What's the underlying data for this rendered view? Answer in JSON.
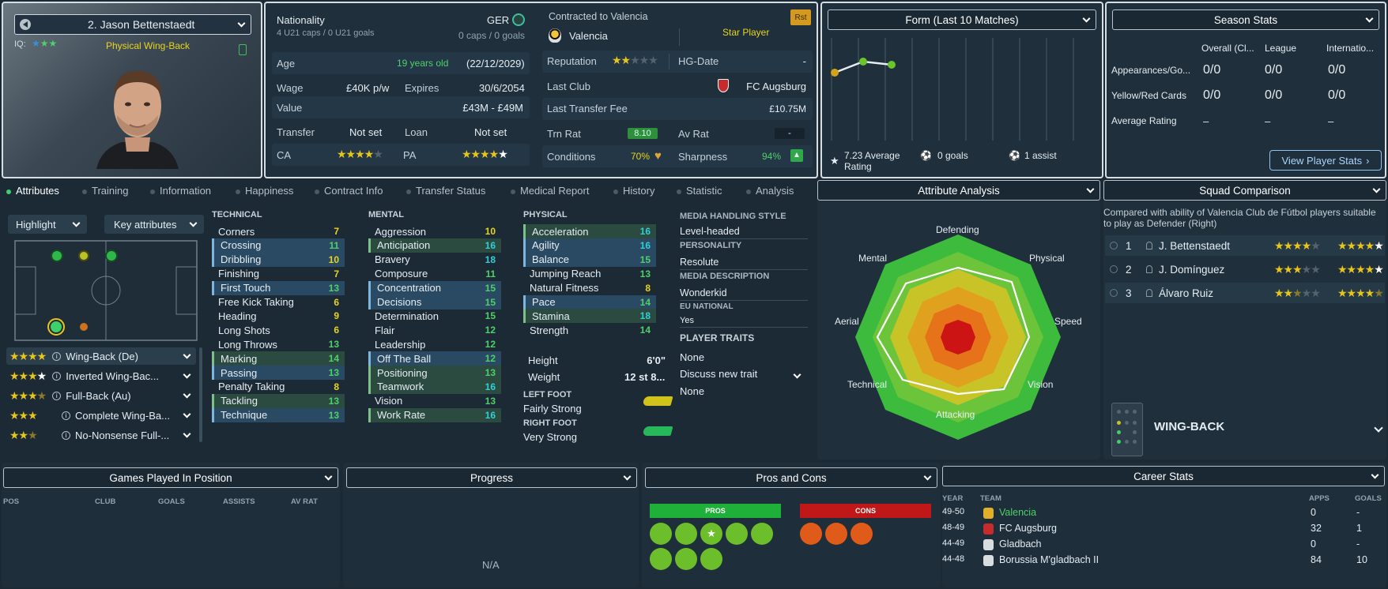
{
  "player": {
    "name": "2. Jason Bettenstaedt",
    "iq_label": "IQ:",
    "role_label": "Physical Wing-Back"
  },
  "profile": {
    "nationality_label": "Nationality",
    "nationality_code": "GER",
    "u21": "4 U21 caps / 0 U21 goals",
    "caps": "0 caps / 0 goals",
    "age_label": "Age",
    "age_value": "19 years old",
    "dob": "(22/12/2029)",
    "wage_label": "Wage",
    "wage": "£40K p/w",
    "expires_label": "Expires",
    "expires": "30/6/2054",
    "value_label": "Value",
    "value": "£43M - £49M",
    "transfer_label": "Transfer",
    "transfer": "Not set",
    "loan_label": "Loan",
    "loan": "Not set",
    "ca_label": "CA",
    "pa_label": "PA"
  },
  "contract": {
    "contracted": "Contracted to Valencia",
    "badge": "Rst",
    "club": "Valencia",
    "status": "Star Player",
    "reputation_label": "Reputation",
    "hg_label": "HG-Date",
    "hg": "-",
    "last_club_label": "Last Club",
    "last_club": "FC Augsburg",
    "fee_label": "Last Transfer Fee",
    "fee": "£10.75M",
    "trn_label": "Trn Rat",
    "trn": "8.10",
    "avrat_label": "Av Rat",
    "avrat": "-",
    "conditions_label": "Conditions",
    "conditions": "70%",
    "sharpness_label": "Sharpness",
    "sharpness": "94%"
  },
  "form": {
    "title": "Form (Last 10 Matches)",
    "avg": "7.23 Average Rating",
    "goals": "0 goals",
    "assists": "1 assist"
  },
  "season": {
    "title": "Season Stats",
    "cols": [
      "Overall (Cl...",
      "League",
      "Internatio..."
    ],
    "rows": [
      {
        "label": "Appearances/Go...",
        "v": [
          "0/0",
          "0/0",
          "0/0"
        ]
      },
      {
        "label": "Yellow/Red Cards",
        "v": [
          "0/0",
          "0/0",
          "0/0"
        ]
      },
      {
        "label": "Average Rating",
        "v": [
          "–",
          "–",
          "–"
        ]
      }
    ],
    "button": "View Player Stats"
  },
  "tabs": [
    "Attributes",
    "Training",
    "Information",
    "Happiness",
    "Contract Info",
    "Transfer Status",
    "Medical Report",
    "History",
    "Statistic",
    "Analysis"
  ],
  "left": {
    "highlight": "Highlight",
    "key": "Key attributes",
    "roles": [
      "Wing-Back (De)",
      "Inverted Wing-Bac...",
      "Full-Back (Au)",
      "Complete Wing-Ba...",
      "No-Nonsense Full-..."
    ]
  },
  "technical": {
    "title": "TECHNICAL",
    "items": [
      [
        "Corners",
        "7"
      ],
      [
        "Crossing",
        "11"
      ],
      [
        "Dribbling",
        "10"
      ],
      [
        "Finishing",
        "7"
      ],
      [
        "First Touch",
        "13"
      ],
      [
        "Free Kick Taking",
        "6"
      ],
      [
        "Heading",
        "9"
      ],
      [
        "Long Shots",
        "6"
      ],
      [
        "Long Throws",
        "13"
      ],
      [
        "Marking",
        "14"
      ],
      [
        "Passing",
        "13"
      ],
      [
        "Penalty Taking",
        "8"
      ],
      [
        "Tackling",
        "13"
      ],
      [
        "Technique",
        "13"
      ]
    ]
  },
  "mental": {
    "title": "MENTAL",
    "items": [
      [
        "Aggression",
        "10"
      ],
      [
        "Anticipation",
        "16"
      ],
      [
        "Bravery",
        "18"
      ],
      [
        "Composure",
        "11"
      ],
      [
        "Concentration",
        "15"
      ],
      [
        "Decisions",
        "15"
      ],
      [
        "Determination",
        "15"
      ],
      [
        "Flair",
        "12"
      ],
      [
        "Leadership",
        "12"
      ],
      [
        "Off The Ball",
        "12"
      ],
      [
        "Positioning",
        "13"
      ],
      [
        "Teamwork",
        "16"
      ],
      [
        "Vision",
        "13"
      ],
      [
        "Work Rate",
        "16"
      ]
    ]
  },
  "physical": {
    "title": "PHYSICAL",
    "items": [
      [
        "Acceleration",
        "16"
      ],
      [
        "Agility",
        "16"
      ],
      [
        "Balance",
        "15"
      ],
      [
        "Jumping Reach",
        "13"
      ],
      [
        "Natural Fitness",
        "8"
      ],
      [
        "Pace",
        "14"
      ],
      [
        "Stamina",
        "18"
      ],
      [
        "Strength",
        "14"
      ]
    ],
    "height_label": "Height",
    "height": "6'0\"",
    "weight_label": "Weight",
    "weight": "12 st 8...",
    "left_foot_label": "LEFT FOOT",
    "left_foot": "Fairly Strong",
    "right_foot_label": "RIGHT FOOT",
    "right_foot": "Very Strong"
  },
  "media": {
    "h1": "MEDIA HANDLING STYLE",
    "v1": "Level-headed",
    "h2": "PERSONALITY",
    "v2": "Resolute",
    "h3": "MEDIA DESCRIPTION",
    "v3": "Wonderkid",
    "h4": "EU NATIONAL",
    "v4": "Yes",
    "h5": "PLAYER TRAITS",
    "v5": "None",
    "discuss": "Discuss new trait",
    "v6": "None"
  },
  "analysis": {
    "title": "Attribute Analysis",
    "labels": [
      "Defending",
      "Physical",
      "Speed",
      "Vision",
      "Attacking",
      "Technical",
      "Aerial",
      "Mental"
    ]
  },
  "squad": {
    "title": "Squad Comparison",
    "desc": "Compared with ability of Valencia Club de Fútbol players suitable to play as Defender (Right)",
    "rows": [
      {
        "rank": "1",
        "name": "J. Bettenstaedt"
      },
      {
        "rank": "2",
        "name": "J. Domínguez"
      },
      {
        "rank": "3",
        "name": "Álvaro Ruiz"
      }
    ],
    "position": "WING-BACK"
  },
  "bottom": {
    "games_title": "Games Played In Position",
    "games_cols": [
      "POS",
      "CLUB",
      "GOALS",
      "ASSISTS",
      "AV RAT"
    ],
    "progress_title": "Progress",
    "na": "N/A",
    "pros_title": "Pros and Cons",
    "pros": "PROS",
    "cons": "CONS"
  },
  "career": {
    "title": "Career Stats",
    "cols": [
      "YEAR",
      "TEAM",
      "APPS",
      "GOALS"
    ],
    "rows": [
      [
        "49-50",
        "Valencia",
        "0",
        "-"
      ],
      [
        "48-49",
        "FC Augsburg",
        "32",
        "1"
      ],
      [
        "44-49",
        "Gladbach",
        "0",
        "-"
      ],
      [
        "44-48",
        "Borussia M'gladbach II",
        "84",
        "10"
      ]
    ]
  },
  "colors": {
    "accent": "#41d06a",
    "star": "#e8c51c",
    "highlight": "#2a4a63"
  }
}
